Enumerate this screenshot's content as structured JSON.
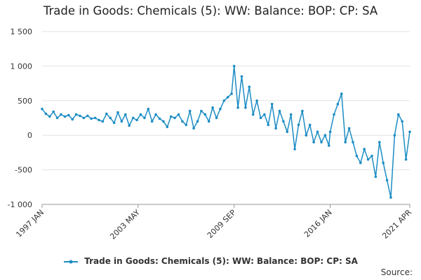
{
  "chart_data": {
    "type": "line",
    "title": "Trade in Goods: Chemicals (5): WW: Balance: BOP: CP: SA",
    "xlabel": "",
    "ylabel": "",
    "x_tick_labels": [
      "1997 JAN",
      "2003 MAY",
      "2009 SEP",
      "2016 JAN",
      "2021 APR"
    ],
    "y_ticks": [
      1500,
      1000,
      500,
      0,
      -500,
      -1000
    ],
    "y_tick_labels": [
      "1 500",
      "1 000",
      "500",
      "0",
      "-500",
      "-1 000"
    ],
    "ylim": [
      -1000,
      1500
    ],
    "x_range": [
      "1997-01",
      "2021-04"
    ],
    "grid": "horizontal",
    "legend_position": "bottom",
    "series": [
      {
        "name": "Trade in Goods: Chemicals (5): WW: Balance: BOP: CP: SA",
        "color": "#1c8dc4",
        "points": [
          [
            "1997-01",
            380
          ],
          [
            "1997-04",
            310
          ],
          [
            "1997-07",
            270
          ],
          [
            "1997-10",
            340
          ],
          [
            "1998-01",
            250
          ],
          [
            "1998-04",
            300
          ],
          [
            "1998-07",
            270
          ],
          [
            "1998-10",
            290
          ],
          [
            "1999-01",
            230
          ],
          [
            "1999-04",
            300
          ],
          [
            "1999-07",
            280
          ],
          [
            "1999-10",
            250
          ],
          [
            "2000-01",
            280
          ],
          [
            "2000-04",
            240
          ],
          [
            "2000-07",
            250
          ],
          [
            "2000-10",
            220
          ],
          [
            "2001-01",
            200
          ],
          [
            "2001-04",
            310
          ],
          [
            "2001-07",
            250
          ],
          [
            "2001-10",
            180
          ],
          [
            "2002-01",
            330
          ],
          [
            "2002-04",
            200
          ],
          [
            "2002-07",
            300
          ],
          [
            "2002-10",
            140
          ],
          [
            "2003-01",
            250
          ],
          [
            "2003-04",
            220
          ],
          [
            "2003-07",
            300
          ],
          [
            "2003-10",
            250
          ],
          [
            "2004-01",
            380
          ],
          [
            "2004-04",
            200
          ],
          [
            "2004-07",
            300
          ],
          [
            "2004-10",
            240
          ],
          [
            "2005-01",
            200
          ],
          [
            "2005-04",
            120
          ],
          [
            "2005-07",
            270
          ],
          [
            "2005-10",
            250
          ],
          [
            "2006-01",
            300
          ],
          [
            "2006-04",
            200
          ],
          [
            "2006-07",
            150
          ],
          [
            "2006-10",
            350
          ],
          [
            "2007-01",
            100
          ],
          [
            "2007-04",
            200
          ],
          [
            "2007-07",
            350
          ],
          [
            "2007-10",
            300
          ],
          [
            "2008-01",
            200
          ],
          [
            "2008-04",
            400
          ],
          [
            "2008-07",
            250
          ],
          [
            "2008-10",
            380
          ],
          [
            "2009-01",
            500
          ],
          [
            "2009-04",
            550
          ],
          [
            "2009-07",
            600
          ],
          [
            "2009-09",
            1000
          ],
          [
            "2009-12",
            400
          ],
          [
            "2010-03",
            850
          ],
          [
            "2010-06",
            400
          ],
          [
            "2010-09",
            700
          ],
          [
            "2010-12",
            300
          ],
          [
            "2011-03",
            500
          ],
          [
            "2011-06",
            250
          ],
          [
            "2011-09",
            300
          ],
          [
            "2011-12",
            150
          ],
          [
            "2012-03",
            450
          ],
          [
            "2012-06",
            100
          ],
          [
            "2012-09",
            350
          ],
          [
            "2012-12",
            200
          ],
          [
            "2013-03",
            50
          ],
          [
            "2013-06",
            300
          ],
          [
            "2013-09",
            -200
          ],
          [
            "2013-12",
            150
          ],
          [
            "2014-03",
            350
          ],
          [
            "2014-06",
            0
          ],
          [
            "2014-09",
            150
          ],
          [
            "2014-12",
            -100
          ],
          [
            "2015-03",
            50
          ],
          [
            "2015-06",
            -100
          ],
          [
            "2015-09",
            0
          ],
          [
            "2015-12",
            -150
          ],
          [
            "2016-01",
            50
          ],
          [
            "2016-04",
            300
          ],
          [
            "2016-07",
            450
          ],
          [
            "2016-10",
            600
          ],
          [
            "2017-01",
            -100
          ],
          [
            "2017-04",
            100
          ],
          [
            "2017-07",
            -100
          ],
          [
            "2017-10",
            -300
          ],
          [
            "2018-01",
            -400
          ],
          [
            "2018-04",
            -200
          ],
          [
            "2018-07",
            -350
          ],
          [
            "2018-10",
            -300
          ],
          [
            "2019-01",
            -600
          ],
          [
            "2019-04",
            -100
          ],
          [
            "2019-07",
            -400
          ],
          [
            "2019-10",
            -650
          ],
          [
            "2020-01",
            -900
          ],
          [
            "2020-04",
            0
          ],
          [
            "2020-07",
            300
          ],
          [
            "2020-10",
            200
          ],
          [
            "2021-01",
            -350
          ],
          [
            "2021-04",
            50
          ]
        ]
      }
    ]
  },
  "legend": {
    "label": "Trade in Goods: Chemicals (5): WW: Balance: BOP: CP: SA"
  },
  "footer": {
    "source_label": "Source:"
  }
}
